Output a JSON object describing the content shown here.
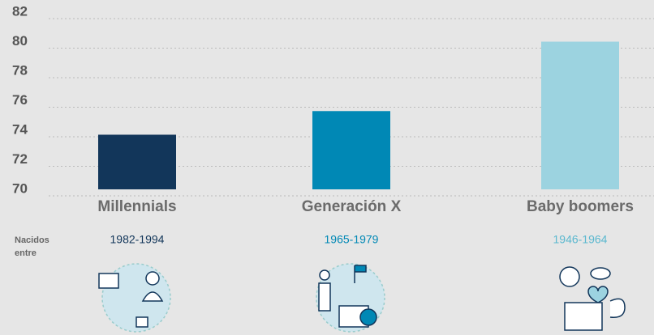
{
  "chart_data": {
    "type": "bar",
    "categories": [
      "Millennials",
      "Generación X",
      "Baby boomers"
    ],
    "values": [
      73.7,
      75.3,
      80
    ],
    "colors": [
      "#12365a",
      "#0088b5",
      "#9cd3e0"
    ],
    "birth_label": [
      "Nacidos",
      "entre"
    ],
    "birth_years": [
      "1982-1994",
      "1965-1979",
      "1946-1964"
    ],
    "ylim": [
      70,
      82
    ],
    "yticks": [
      70,
      72,
      74,
      76,
      78,
      80,
      82
    ],
    "grid": true
  }
}
